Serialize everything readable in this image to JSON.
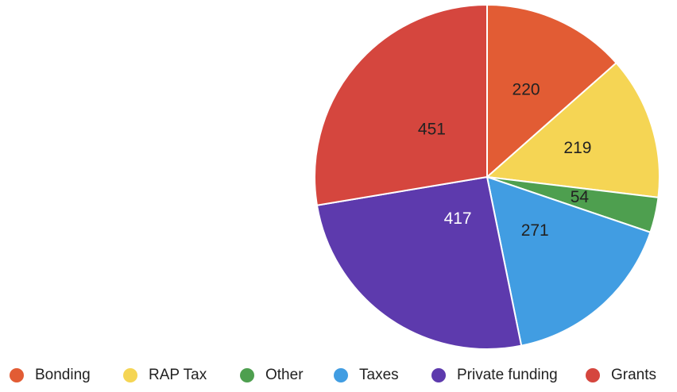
{
  "chart_data": {
    "type": "pie",
    "legend_position": "bottom",
    "start": "top, clockwise",
    "slices": [
      {
        "label": "Bonding",
        "value": 220,
        "color": "#e25c34"
      },
      {
        "label": "RAP Tax",
        "value": 219,
        "color": "#f5d554"
      },
      {
        "label": "Other",
        "value": 54,
        "color": "#4e9f4f"
      },
      {
        "label": "Taxes",
        "value": 271,
        "color": "#419de2"
      },
      {
        "label": "Private funding",
        "value": 417,
        "color": "#5d3aad"
      },
      {
        "label": "Grants",
        "value": 451,
        "color": "#d5463e"
      }
    ]
  }
}
